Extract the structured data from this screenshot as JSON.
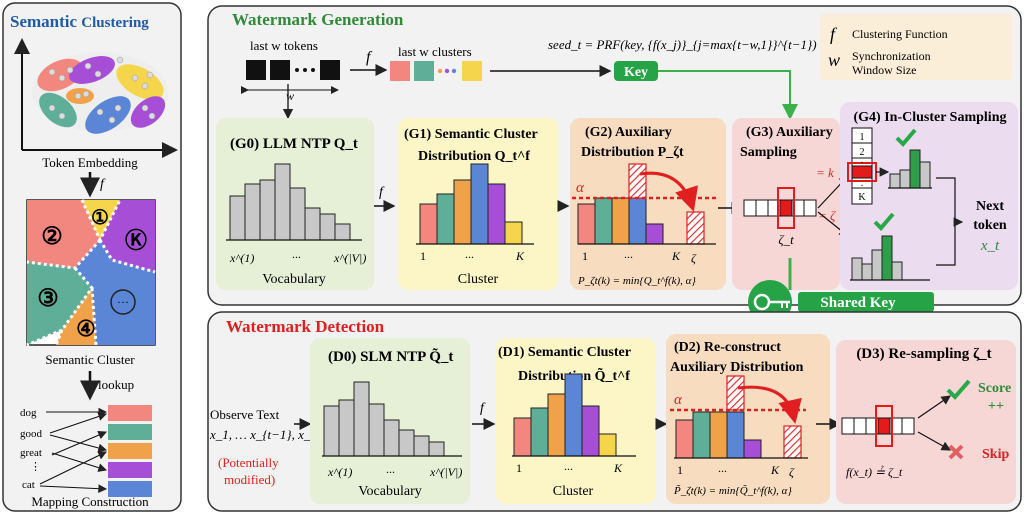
{
  "left_panel": {
    "title_a": "Semantic",
    "title_b": "Clustering",
    "embedding_label": "Token Embedding",
    "f_symbol": "f",
    "cluster_labels": [
      "①",
      "②",
      "Ⓚ",
      "③",
      "···",
      "④"
    ],
    "semantic_cluster_label": "Semantic Cluster",
    "lookup_label": "lookup",
    "words": [
      "dog",
      "good",
      "great",
      "⋮",
      "cat"
    ],
    "mapping_label": "Mapping Construction",
    "colors": {
      "pink": "#f2877f",
      "teal": "#5fae98",
      "orange": "#f0a24a",
      "purple": "#a64fd6",
      "blue": "#5b86d6",
      "yellow": "#f4d54c"
    }
  },
  "generation": {
    "title": "Watermark Generation",
    "last_w_tokens": "last w tokens",
    "last_w_clusters": "last w clusters",
    "w_symbol": "w",
    "f_symbol": "f",
    "seed_formula": "seed_t = PRF(key, {f(x_j)}_{j=max{t−w,1}}^{t−1})",
    "key_label": "Key",
    "legend": {
      "f_symbol": "f",
      "f_desc": "Clustering Function",
      "w_symbol": "w",
      "w_desc_1": "Synchronization",
      "w_desc_2": "Window Size"
    },
    "g0": {
      "title": "(G0) LLM NTP Q_t",
      "x_left": "x^(1)",
      "x_dots": "...",
      "x_right": "x^(|V|)",
      "axis_label": "Vocabulary",
      "values": [
        0.45,
        0.55,
        0.6,
        0.8,
        0.55,
        0.35,
        0.3,
        0.2
      ]
    },
    "g1": {
      "title_1": "(G1) Semantic Cluster",
      "title_2": "Distribution Q_t^f",
      "x_left": "1",
      "x_dots": "...",
      "x_right": "K",
      "axis_label": "Cluster",
      "values": [
        0.45,
        0.55,
        0.75,
        1.0,
        0.7,
        0.3
      ]
    },
    "g2": {
      "title_1": "(G2) Auxiliary",
      "title_2": "Distribution P_ζt",
      "alpha": "α",
      "x_left": "1",
      "x_dots": "...",
      "x_right": "K",
      "x_zeta": "ζ",
      "formula": "P_ζt(k) = min{Q_t^f(k), α}"
    },
    "g3": {
      "title_1": "(G3) Auxiliary",
      "title_2": "Sampling",
      "eq_k": "= k",
      "eq_zeta": "= ζ",
      "zeta_t": "ζ_t"
    },
    "g4": {
      "title": "(G4) In-Cluster Sampling",
      "list": [
        "1",
        "2",
        ".",
        ".",
        "K"
      ],
      "next_token": "Next token",
      "x_t": "x_t"
    },
    "shared_key_label": "Shared Key"
  },
  "detection": {
    "title": "Watermark Detection",
    "observe_1": "Observe Text",
    "observe_2": "x_1, … x_{t−1}, x_t",
    "potentially_1": "(Potentially",
    "potentially_2": "modified)",
    "f_symbol": "f",
    "d0": {
      "title": "(D0) SLM NTP Q̃_t",
      "x_left": "x^(1)",
      "x_dots": "...",
      "x_right": "x^(|V|)",
      "axis_label": "Vocabulary"
    },
    "d1": {
      "title_1": "(D1) Semantic Cluster",
      "title_2": "Distribution Q̃_t^f",
      "x_left": "1",
      "x_dots": "...",
      "x_right": "K",
      "axis_label": "Cluster"
    },
    "d2": {
      "title_1": "(D2) Re-construct",
      "title_2": "Auxiliary Distribution",
      "alpha": "α",
      "x_left": "1",
      "x_dots": "...",
      "x_right": "K",
      "x_zeta": "ζ",
      "formula": "P̃_ζt(k) = min{Q̃_t^f(k), α}"
    },
    "d3": {
      "title": "(D3) Re-sampling ζ_t",
      "score": "Score",
      "plusplus": "++",
      "skip": "Skip",
      "formula": "f(x_t) ≟ ζ_t"
    }
  }
}
